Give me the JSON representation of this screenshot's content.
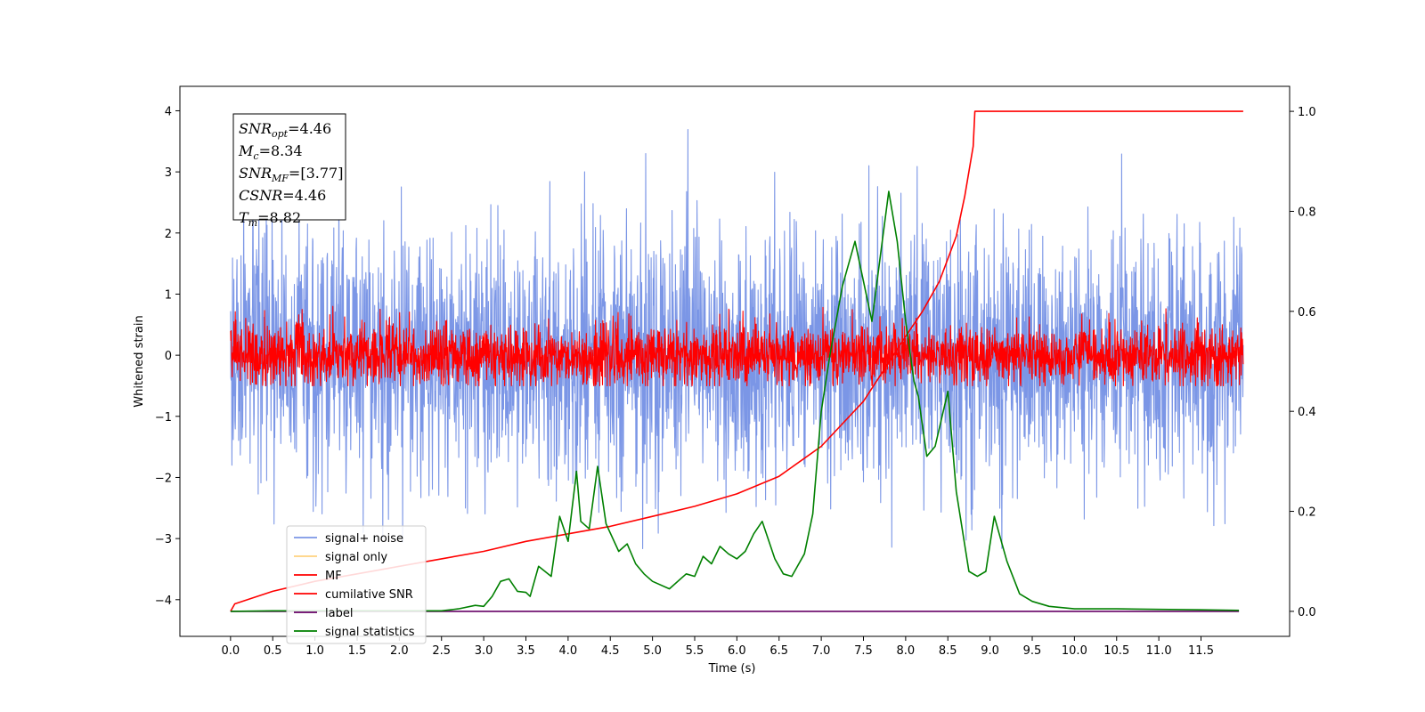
{
  "chart_data": {
    "type": "line",
    "xlabel": "Time (s)",
    "ylabel": "Whitened strain",
    "xlim": [
      -0.6,
      12.55
    ],
    "ylim": [
      -4.6,
      4.4
    ],
    "ylim_right": [
      -0.05,
      1.05
    ],
    "x_ticks": [
      "0.0",
      "0.5",
      "1.0",
      "1.5",
      "2.0",
      "2.5",
      "3.0",
      "3.5",
      "4.0",
      "4.5",
      "5.0",
      "5.5",
      "6.0",
      "6.5",
      "7.0",
      "7.5",
      "8.0",
      "8.5",
      "9.0",
      "9.5",
      "10.0",
      "10.5",
      "11.0",
      "11.5"
    ],
    "y_ticks_left": [
      "4",
      "3",
      "2",
      "1",
      "0",
      "−1",
      "−2",
      "−3",
      "−4"
    ],
    "y_ticks_right": [
      "1.0",
      "0.8",
      "0.6",
      "0.4",
      "0.2",
      "0.0"
    ],
    "stats": [
      {
        "base": "SNR",
        "sub": "opt",
        "value": "=4.46"
      },
      {
        "base": "M",
        "sub": "c",
        "value": "=8.34"
      },
      {
        "base": "SNR",
        "sub": "MF",
        "value": "=[3.77]"
      },
      {
        "base": "CSNR",
        "sub": "",
        "value": "=4.46"
      },
      {
        "base": "T",
        "sub": "m",
        "value": "=8.82"
      }
    ],
    "legend": [
      {
        "label": "signal+ noise",
        "color": "#7b96e6"
      },
      {
        "label": "signal only",
        "color": "#ffd27f"
      },
      {
        "label": "MF",
        "color": "#ff0000"
      },
      {
        "label": "cumilative SNR",
        "color": "#ff0000"
      },
      {
        "label": "label",
        "color": "#660066"
      },
      {
        "label": "signal statistics",
        "color": "#008000"
      }
    ],
    "series": [
      {
        "name": "signal+ noise",
        "axis": "left",
        "color": "#7b96e6",
        "kind": "noise",
        "t_range": [
          0,
          12
        ],
        "amplitude_sd": 1.0,
        "range": [
          -4.1,
          4.0
        ]
      },
      {
        "name": "MF",
        "axis": "left",
        "color": "#ff0000",
        "kind": "noise",
        "t_range": [
          0,
          12
        ],
        "amplitude_sd": 0.25,
        "range": [
          -0.5,
          1.0
        ]
      },
      {
        "name": "cumilative SNR",
        "axis": "right",
        "color": "#ff0000",
        "x": [
          0.0,
          0.05,
          0.5,
          1.0,
          1.5,
          2.0,
          2.5,
          3.0,
          3.5,
          4.0,
          4.5,
          5.0,
          5.5,
          6.0,
          6.5,
          7.0,
          7.5,
          8.0,
          8.2,
          8.4,
          8.6,
          8.7,
          8.8,
          8.82,
          12.0
        ],
        "y": [
          0.0,
          0.015,
          0.04,
          0.06,
          0.075,
          0.09,
          0.105,
          0.12,
          0.14,
          0.155,
          0.17,
          0.19,
          0.21,
          0.235,
          0.27,
          0.33,
          0.42,
          0.55,
          0.6,
          0.66,
          0.75,
          0.83,
          0.93,
          1.0,
          1.0
        ]
      },
      {
        "name": "label",
        "axis": "right",
        "color": "#660066",
        "x": [
          0,
          11.95
        ],
        "y": [
          0,
          0
        ]
      },
      {
        "name": "signal statistics",
        "axis": "right",
        "color": "#008000",
        "x": [
          0.0,
          0.5,
          1.0,
          1.5,
          2.0,
          2.5,
          2.7,
          2.9,
          3.0,
          3.1,
          3.2,
          3.3,
          3.4,
          3.5,
          3.55,
          3.65,
          3.8,
          3.9,
          4.0,
          4.1,
          4.15,
          4.25,
          4.35,
          4.45,
          4.6,
          4.7,
          4.8,
          4.9,
          5.0,
          5.2,
          5.4,
          5.5,
          5.6,
          5.7,
          5.8,
          5.9,
          6.0,
          6.1,
          6.2,
          6.3,
          6.45,
          6.55,
          6.65,
          6.8,
          6.9,
          7.0,
          7.1,
          7.25,
          7.4,
          7.5,
          7.6,
          7.7,
          7.8,
          7.9,
          8.0,
          8.1,
          8.15,
          8.25,
          8.35,
          8.5,
          8.6,
          8.75,
          8.85,
          8.95,
          9.05,
          9.2,
          9.35,
          9.5,
          9.7,
          10.0,
          10.5,
          11.0,
          11.5,
          11.95
        ],
        "y": [
          0.0,
          0.001,
          0.001,
          0.001,
          0.001,
          0.001,
          0.005,
          0.012,
          0.01,
          0.03,
          0.06,
          0.065,
          0.04,
          0.038,
          0.03,
          0.09,
          0.07,
          0.19,
          0.14,
          0.28,
          0.18,
          0.165,
          0.29,
          0.175,
          0.12,
          0.135,
          0.095,
          0.075,
          0.06,
          0.045,
          0.075,
          0.07,
          0.11,
          0.095,
          0.13,
          0.115,
          0.105,
          0.12,
          0.155,
          0.18,
          0.105,
          0.075,
          0.07,
          0.115,
          0.195,
          0.4,
          0.51,
          0.65,
          0.74,
          0.66,
          0.58,
          0.71,
          0.84,
          0.74,
          0.58,
          0.46,
          0.43,
          0.31,
          0.33,
          0.44,
          0.24,
          0.08,
          0.07,
          0.08,
          0.19,
          0.1,
          0.035,
          0.02,
          0.01,
          0.005,
          0.005,
          0.004,
          0.003,
          0.002
        ]
      }
    ]
  }
}
